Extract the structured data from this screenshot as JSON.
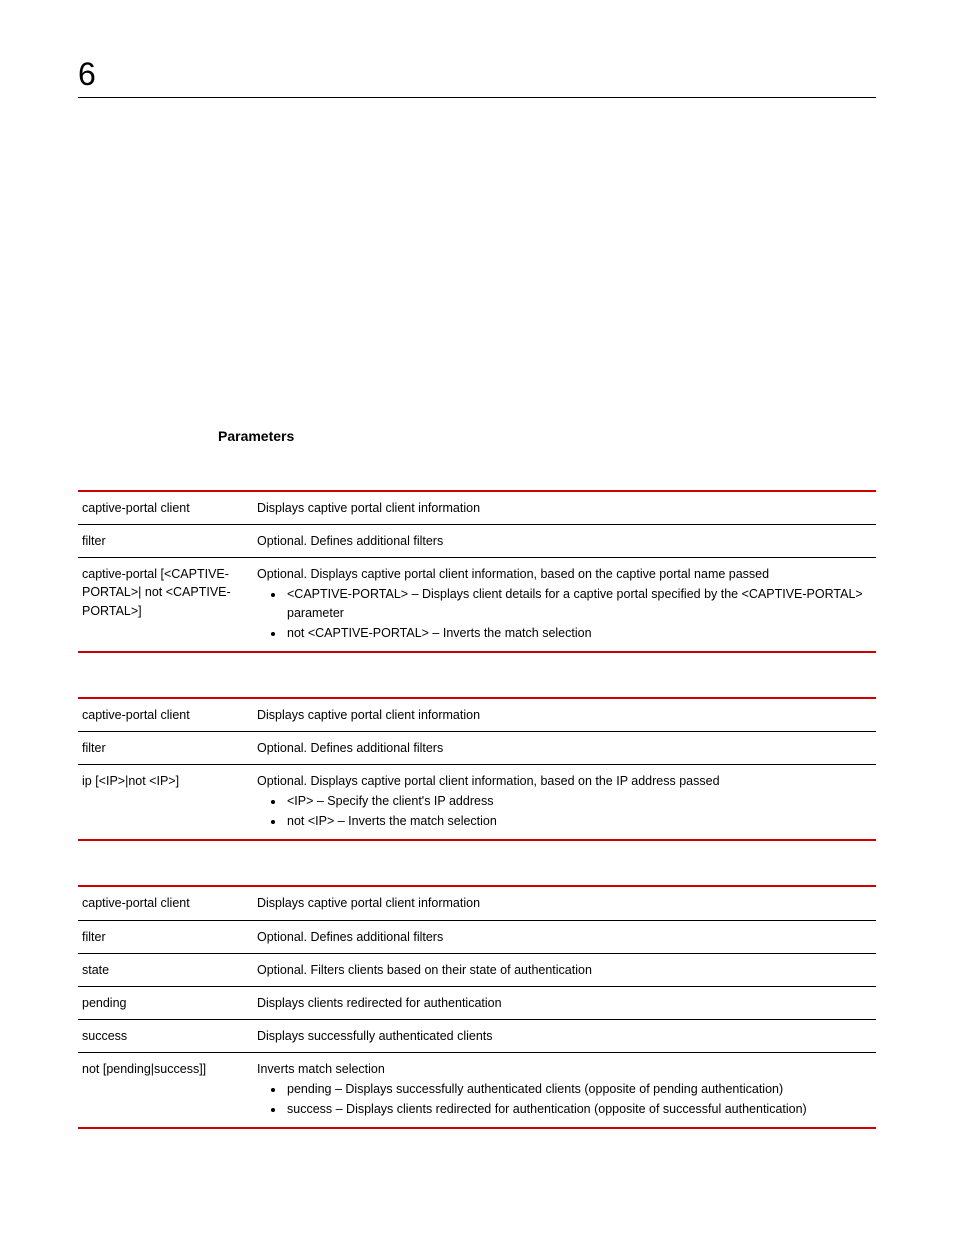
{
  "chapter": "6",
  "section_heading": "Parameters",
  "tables": [
    {
      "rows": [
        {
          "param": "captive-portal client",
          "desc": "Displays captive portal client information"
        },
        {
          "param": "filter",
          "desc": "Optional. Defines additional filters"
        },
        {
          "param": "captive-portal [<CAPTIVE-PORTAL>| not <CAPTIVE-PORTAL>]",
          "desc": "Optional. Displays captive portal client information, based on the captive portal name passed",
          "bullets": [
            "<CAPTIVE-PORTAL> – Displays client details for a captive portal specified by the <CAPTIVE-PORTAL> parameter",
            "not <CAPTIVE-PORTAL> – Inverts the match selection"
          ]
        }
      ]
    },
    {
      "rows": [
        {
          "param": "captive-portal client",
          "desc": "Displays captive portal client information"
        },
        {
          "param": "filter",
          "desc": "Optional. Defines additional filters"
        },
        {
          "param": "ip [<IP>|not <IP>]",
          "desc": "Optional. Displays captive portal client information, based on the IP address passed",
          "bullets": [
            "<IP> – Specify the client's IP address",
            "not <IP> – Inverts the match selection"
          ]
        }
      ]
    },
    {
      "rows": [
        {
          "param": "captive-portal client",
          "desc": "Displays captive portal client information"
        },
        {
          "param": "filter",
          "desc": "Optional. Defines additional filters"
        },
        {
          "param": "state",
          "desc": "Optional. Filters clients based on their state of authentication"
        },
        {
          "param": "pending",
          "desc": "Displays clients redirected for authentication"
        },
        {
          "param": "success",
          "desc": "Displays successfully authenticated clients"
        },
        {
          "param": "not [pending|success]]",
          "desc": "Inverts match selection",
          "bullets": [
            "pending – Displays successfully authenticated clients (opposite of pending authentication)",
            "success – Displays clients redirected for authentication (opposite of successful authentication)"
          ]
        }
      ]
    }
  ],
  "colors": {
    "accent": "#cc0000",
    "text": "#000000",
    "rule": "#000000",
    "background": "#ffffff"
  }
}
